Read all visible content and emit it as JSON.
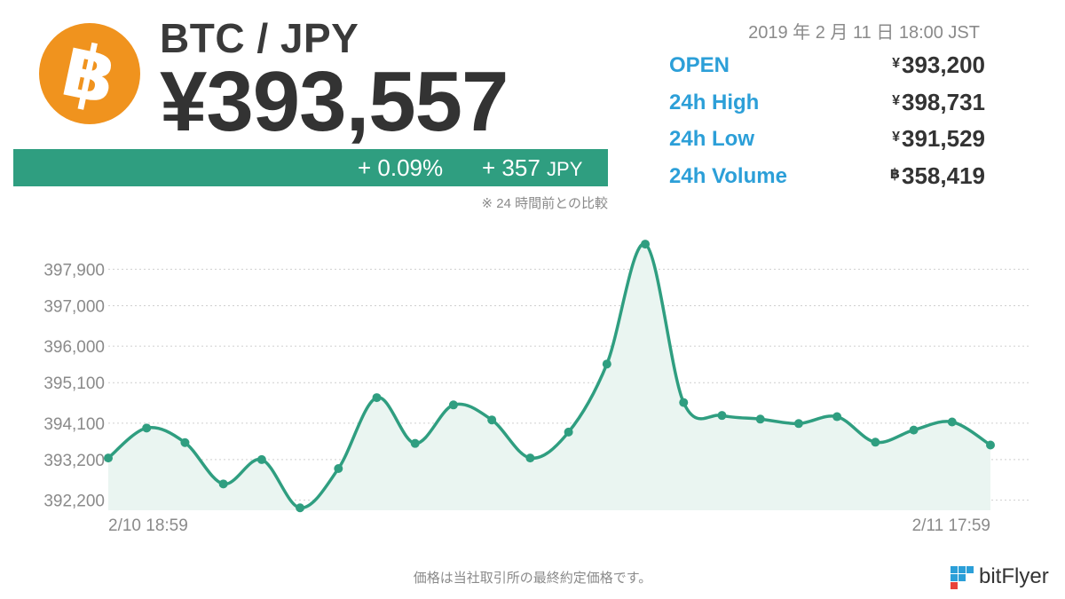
{
  "header": {
    "pair": "BTC / JPY",
    "price": "¥393,557",
    "change_pct": "+ 0.09%",
    "change_amt": "+ 357",
    "change_unit": "JPY",
    "note": "※ 24 時間前との比較",
    "datetime": "2019 年 2 月 11 日 18:00 JST",
    "logo_glyph": "฿",
    "logo_color": "#F0931E"
  },
  "stats": [
    {
      "label": "OPEN",
      "currency": "¥",
      "value": "393,200"
    },
    {
      "label": "24h High",
      "currency": "¥",
      "value": "398,731"
    },
    {
      "label": "24h Low",
      "currency": "¥",
      "value": "391,529"
    },
    {
      "label": "24h Volume",
      "currency": "฿",
      "value": "358,419"
    }
  ],
  "chart_data": {
    "type": "area",
    "title": "",
    "xlabel": "",
    "ylabel": "",
    "x_tick_labels": [
      "2/10 18:59",
      "2/11 17:59"
    ],
    "y_tick_labels": [
      "392,200",
      "393,200",
      "394,100",
      "395,100",
      "396,000",
      "397,000",
      "397,900"
    ],
    "y_ticks": [
      392200,
      393200,
      394100,
      395100,
      396000,
      397000,
      397900
    ],
    "values": [
      393240,
      393980,
      393620,
      392600,
      393200,
      392010,
      392980,
      394730,
      393600,
      394550,
      394180,
      393240,
      393880,
      395560,
      398520,
      394610,
      394290,
      394200,
      394090,
      394260,
      393630,
      393930,
      394130,
      393560
    ],
    "ylim": [
      391950,
      398850
    ],
    "grid": true,
    "line_color": "#2F9E80",
    "fill_color": "#EAF5F1",
    "legend": "none"
  },
  "footer": {
    "note": "価格は当社取引所の最終約定価格です。",
    "brand": "bitFlyer"
  },
  "colors": {
    "accent_green": "#2F9E80",
    "label_blue": "#2C9FD8",
    "brand_blue": "#2C9FD8",
    "brand_red": "#E8433A"
  }
}
